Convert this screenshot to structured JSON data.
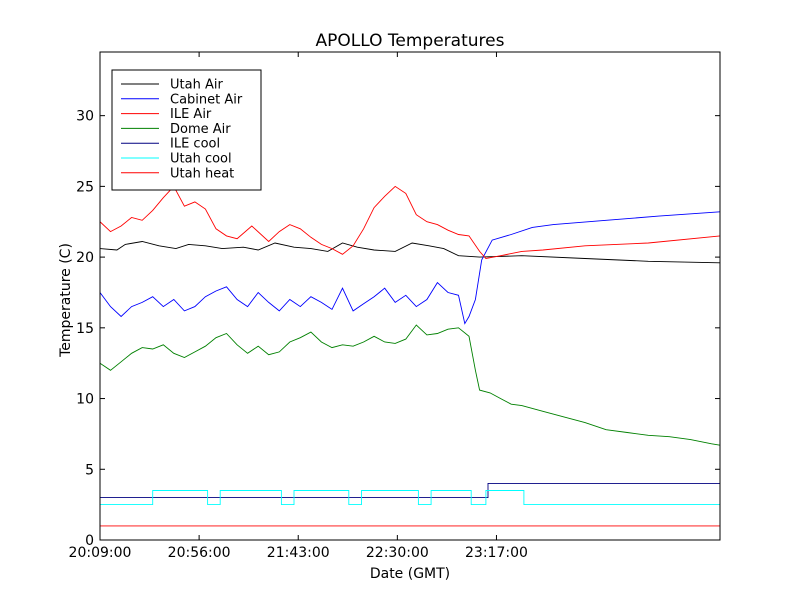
{
  "chart_data": {
    "type": "line",
    "title": "APOLLO Temperatures",
    "xlabel": "Date (GMT)",
    "ylabel": "Temperature (C)",
    "xlim_minutes": [
      0,
      294
    ],
    "ylim": [
      0,
      34.5
    ],
    "xticks": [
      {
        "minute": 0,
        "label": "20:09:00"
      },
      {
        "minute": 47,
        "label": "20:56:00"
      },
      {
        "minute": 94,
        "label": "21:43:00"
      },
      {
        "minute": 141,
        "label": "22:30:00"
      },
      {
        "minute": 188,
        "label": "23:17:00"
      }
    ],
    "yticks": [
      0,
      5,
      10,
      15,
      20,
      25,
      30
    ],
    "legend_position": "top-left",
    "series": [
      {
        "name": "Utah Air",
        "color": "#000000",
        "step": false,
        "points": [
          [
            0,
            20.6
          ],
          [
            8,
            20.5
          ],
          [
            12,
            20.9
          ],
          [
            20,
            21.1
          ],
          [
            28,
            20.8
          ],
          [
            36,
            20.6
          ],
          [
            42,
            20.9
          ],
          [
            50,
            20.8
          ],
          [
            58,
            20.6
          ],
          [
            68,
            20.7
          ],
          [
            75,
            20.5
          ],
          [
            83,
            21.0
          ],
          [
            92,
            20.7
          ],
          [
            100,
            20.6
          ],
          [
            108,
            20.4
          ],
          [
            115,
            21.0
          ],
          [
            122,
            20.7
          ],
          [
            130,
            20.5
          ],
          [
            140,
            20.4
          ],
          [
            148,
            21.0
          ],
          [
            156,
            20.8
          ],
          [
            163,
            20.6
          ],
          [
            170,
            20.1
          ],
          [
            180,
            20.0
          ],
          [
            200,
            20.1
          ],
          [
            230,
            19.9
          ],
          [
            260,
            19.7
          ],
          [
            294,
            19.6
          ]
        ]
      },
      {
        "name": "Cabinet Air",
        "color": "#0000ff",
        "step": false,
        "points": [
          [
            0,
            17.5
          ],
          [
            5,
            16.5
          ],
          [
            10,
            15.8
          ],
          [
            15,
            16.5
          ],
          [
            20,
            16.8
          ],
          [
            25,
            17.2
          ],
          [
            30,
            16.5
          ],
          [
            35,
            17.0
          ],
          [
            40,
            16.2
          ],
          [
            45,
            16.5
          ],
          [
            50,
            17.2
          ],
          [
            55,
            17.6
          ],
          [
            60,
            17.9
          ],
          [
            65,
            17.0
          ],
          [
            70,
            16.5
          ],
          [
            75,
            17.5
          ],
          [
            80,
            16.8
          ],
          [
            85,
            16.2
          ],
          [
            90,
            17.0
          ],
          [
            95,
            16.5
          ],
          [
            100,
            17.2
          ],
          [
            105,
            16.8
          ],
          [
            110,
            16.3
          ],
          [
            115,
            17.8
          ],
          [
            120,
            16.2
          ],
          [
            125,
            16.7
          ],
          [
            130,
            17.2
          ],
          [
            135,
            17.8
          ],
          [
            140,
            16.8
          ],
          [
            145,
            17.3
          ],
          [
            150,
            16.5
          ],
          [
            155,
            17.0
          ],
          [
            160,
            18.2
          ],
          [
            165,
            17.5
          ],
          [
            170,
            17.3
          ],
          [
            173,
            15.3
          ],
          [
            175,
            15.8
          ],
          [
            178,
            17.0
          ],
          [
            181,
            19.8
          ],
          [
            186,
            21.2
          ],
          [
            195,
            21.6
          ],
          [
            205,
            22.1
          ],
          [
            215,
            22.3
          ],
          [
            240,
            22.6
          ],
          [
            265,
            22.9
          ],
          [
            294,
            23.2
          ]
        ]
      },
      {
        "name": "ILE Air",
        "color": "#ff0000",
        "step": false,
        "points": [
          [
            0,
            22.5
          ],
          [
            5,
            21.8
          ],
          [
            10,
            22.2
          ],
          [
            15,
            22.8
          ],
          [
            20,
            22.6
          ],
          [
            25,
            23.3
          ],
          [
            30,
            24.2
          ],
          [
            35,
            25.0
          ],
          [
            40,
            23.6
          ],
          [
            45,
            23.9
          ],
          [
            50,
            23.4
          ],
          [
            55,
            22.0
          ],
          [
            60,
            21.5
          ],
          [
            65,
            21.3
          ],
          [
            72,
            22.2
          ],
          [
            80,
            21.1
          ],
          [
            85,
            21.8
          ],
          [
            90,
            22.3
          ],
          [
            95,
            22.0
          ],
          [
            100,
            21.4
          ],
          [
            105,
            20.9
          ],
          [
            110,
            20.6
          ],
          [
            115,
            20.2
          ],
          [
            120,
            20.8
          ],
          [
            125,
            22.0
          ],
          [
            130,
            23.5
          ],
          [
            135,
            24.3
          ],
          [
            140,
            25.0
          ],
          [
            145,
            24.5
          ],
          [
            150,
            23.0
          ],
          [
            155,
            22.5
          ],
          [
            160,
            22.3
          ],
          [
            165,
            21.9
          ],
          [
            170,
            21.6
          ],
          [
            175,
            21.5
          ],
          [
            180,
            20.4
          ],
          [
            183,
            19.9
          ],
          [
            190,
            20.1
          ],
          [
            200,
            20.4
          ],
          [
            210,
            20.5
          ],
          [
            230,
            20.8
          ],
          [
            260,
            21.0
          ],
          [
            294,
            21.5
          ]
        ]
      },
      {
        "name": "Dome Air",
        "color": "#008000",
        "step": false,
        "points": [
          [
            0,
            12.5
          ],
          [
            5,
            12.0
          ],
          [
            10,
            12.6
          ],
          [
            15,
            13.2
          ],
          [
            20,
            13.6
          ],
          [
            25,
            13.5
          ],
          [
            30,
            13.8
          ],
          [
            35,
            13.2
          ],
          [
            40,
            12.9
          ],
          [
            45,
            13.3
          ],
          [
            50,
            13.7
          ],
          [
            55,
            14.3
          ],
          [
            60,
            14.6
          ],
          [
            65,
            13.8
          ],
          [
            70,
            13.2
          ],
          [
            75,
            13.7
          ],
          [
            80,
            13.1
          ],
          [
            85,
            13.3
          ],
          [
            90,
            14.0
          ],
          [
            95,
            14.3
          ],
          [
            100,
            14.7
          ],
          [
            105,
            14.0
          ],
          [
            110,
            13.6
          ],
          [
            115,
            13.8
          ],
          [
            120,
            13.7
          ],
          [
            125,
            14.0
          ],
          [
            130,
            14.4
          ],
          [
            135,
            14.0
          ],
          [
            140,
            13.9
          ],
          [
            145,
            14.2
          ],
          [
            150,
            15.2
          ],
          [
            155,
            14.5
          ],
          [
            160,
            14.6
          ],
          [
            165,
            14.9
          ],
          [
            170,
            15.0
          ],
          [
            175,
            14.4
          ],
          [
            178,
            12.0
          ],
          [
            180,
            10.6
          ],
          [
            185,
            10.4
          ],
          [
            190,
            10.0
          ],
          [
            195,
            9.6
          ],
          [
            200,
            9.5
          ],
          [
            210,
            9.1
          ],
          [
            220,
            8.7
          ],
          [
            230,
            8.3
          ],
          [
            240,
            7.8
          ],
          [
            250,
            7.6
          ],
          [
            260,
            7.4
          ],
          [
            270,
            7.3
          ],
          [
            280,
            7.1
          ],
          [
            290,
            6.8
          ],
          [
            294,
            6.7
          ]
        ]
      },
      {
        "name": "ILE cool",
        "color": "#000080",
        "step": true,
        "points": [
          [
            0,
            3.0
          ],
          [
            184,
            3.0
          ],
          [
            184,
            4.0
          ],
          [
            294,
            4.0
          ]
        ]
      },
      {
        "name": "Utah cool",
        "color": "#00ffff",
        "step": true,
        "points": [
          [
            0,
            2.5
          ],
          [
            25,
            2.5
          ],
          [
            25,
            3.5
          ],
          [
            51,
            3.5
          ],
          [
            51,
            2.5
          ],
          [
            57,
            2.5
          ],
          [
            57,
            3.5
          ],
          [
            86,
            3.5
          ],
          [
            86,
            2.5
          ],
          [
            92,
            2.5
          ],
          [
            92,
            3.5
          ],
          [
            118,
            3.5
          ],
          [
            118,
            2.5
          ],
          [
            124,
            2.5
          ],
          [
            124,
            3.5
          ],
          [
            151,
            3.5
          ],
          [
            151,
            2.5
          ],
          [
            157,
            2.5
          ],
          [
            157,
            3.5
          ],
          [
            176,
            3.5
          ],
          [
            176,
            2.5
          ],
          [
            183,
            2.5
          ],
          [
            183,
            3.5
          ],
          [
            201,
            3.5
          ],
          [
            201,
            2.5
          ],
          [
            294,
            2.5
          ]
        ]
      },
      {
        "name": "Utah heat",
        "color": "#ff0000",
        "step": true,
        "points": [
          [
            0,
            1.0
          ],
          [
            294,
            1.0
          ]
        ]
      }
    ]
  }
}
